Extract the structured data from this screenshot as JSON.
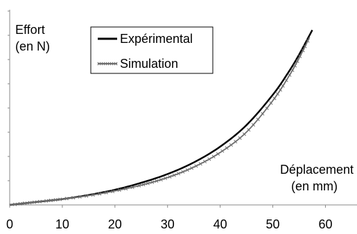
{
  "chart_data": {
    "type": "line",
    "ylabel_lines": [
      "Effort",
      "(en N)"
    ],
    "xlabel_lines": [
      "Déplacement",
      "(en mm)"
    ],
    "xlim": [
      0,
      66
    ],
    "xticks": [
      0,
      10,
      20,
      30,
      40,
      50,
      60
    ],
    "grid": false,
    "legend_position": "top-center",
    "colors": {
      "experimental": "#000000",
      "simulation": "#6f6f6f",
      "axis": "#888888"
    },
    "series": [
      {
        "name": "Expérimental",
        "style": "solid-line",
        "x": [
          0,
          2,
          5,
          10,
          15,
          20,
          25,
          30,
          35,
          40,
          45,
          50,
          53,
          55,
          57.5
        ],
        "y": [
          0,
          0.02,
          0.05,
          0.1,
          0.17,
          0.26,
          0.38,
          0.53,
          0.73,
          1.0,
          1.37,
          1.89,
          2.28,
          2.58,
          3.0
        ]
      },
      {
        "name": "Simulation",
        "style": "line-with-cross-markers",
        "x": [
          0,
          2,
          5,
          10,
          15,
          20,
          25,
          30,
          35,
          40,
          45,
          50,
          53,
          55,
          57
        ],
        "y": [
          0,
          0.02,
          0.05,
          0.1,
          0.16,
          0.24,
          0.34,
          0.47,
          0.65,
          0.9,
          1.25,
          1.79,
          2.2,
          2.52,
          2.88
        ]
      }
    ]
  }
}
